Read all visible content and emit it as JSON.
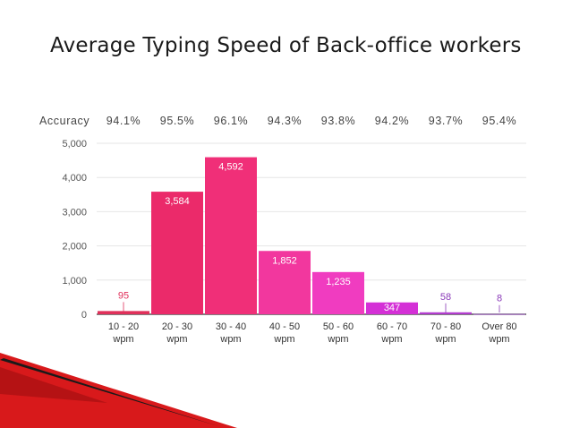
{
  "slide": {
    "title": "Average Typing Speed of Back-office workers"
  },
  "accuracy": {
    "label": "Accuracy",
    "values": [
      "94.1%",
      "95.5%",
      "96.1%",
      "94.3%",
      "93.8%",
      "94.2%",
      "93.7%",
      "95.4%"
    ]
  },
  "chart_data": {
    "type": "bar",
    "title": "",
    "xlabel": "",
    "ylabel": "",
    "categories": [
      [
        "10 - 20",
        "wpm"
      ],
      [
        "20 - 30",
        "wpm"
      ],
      [
        "30 - 40",
        "wpm"
      ],
      [
        "40 - 50",
        "wpm"
      ],
      [
        "50 - 60",
        "wpm"
      ],
      [
        "60 - 70",
        "wpm"
      ],
      [
        "70 - 80",
        "wpm"
      ],
      [
        "Over 80",
        "wpm"
      ]
    ],
    "values": [
      95,
      3584,
      4592,
      1852,
      1235,
      347,
      58,
      8
    ],
    "data_labels": [
      "95",
      "3,584",
      "4,592",
      "1,852",
      "1,235",
      "347",
      "58",
      "8"
    ],
    "bar_colors": [
      "#e0305a",
      "#eb2a6a",
      "#f02f78",
      "#f2379e",
      "#f03cc0",
      "#d430d6",
      "#b23ccf",
      "#8a3ab8"
    ],
    "ylim": [
      0,
      5000
    ],
    "yticks": [
      0,
      1000,
      2000,
      3000,
      4000,
      5000
    ],
    "ytick_labels": [
      "0",
      "1,000",
      "2,000",
      "3,000",
      "4,000",
      "5,000"
    ],
    "grid": true,
    "legend": "none"
  },
  "colors": {
    "label_outside_low": "#e0305a",
    "label_outside_purple": "#8a3ab8",
    "grid": "#e6e6e6",
    "axis": "#333333",
    "tick_text": "#555555",
    "decor_red": "#d8191b",
    "decor_dark": "#1a1a1a"
  }
}
